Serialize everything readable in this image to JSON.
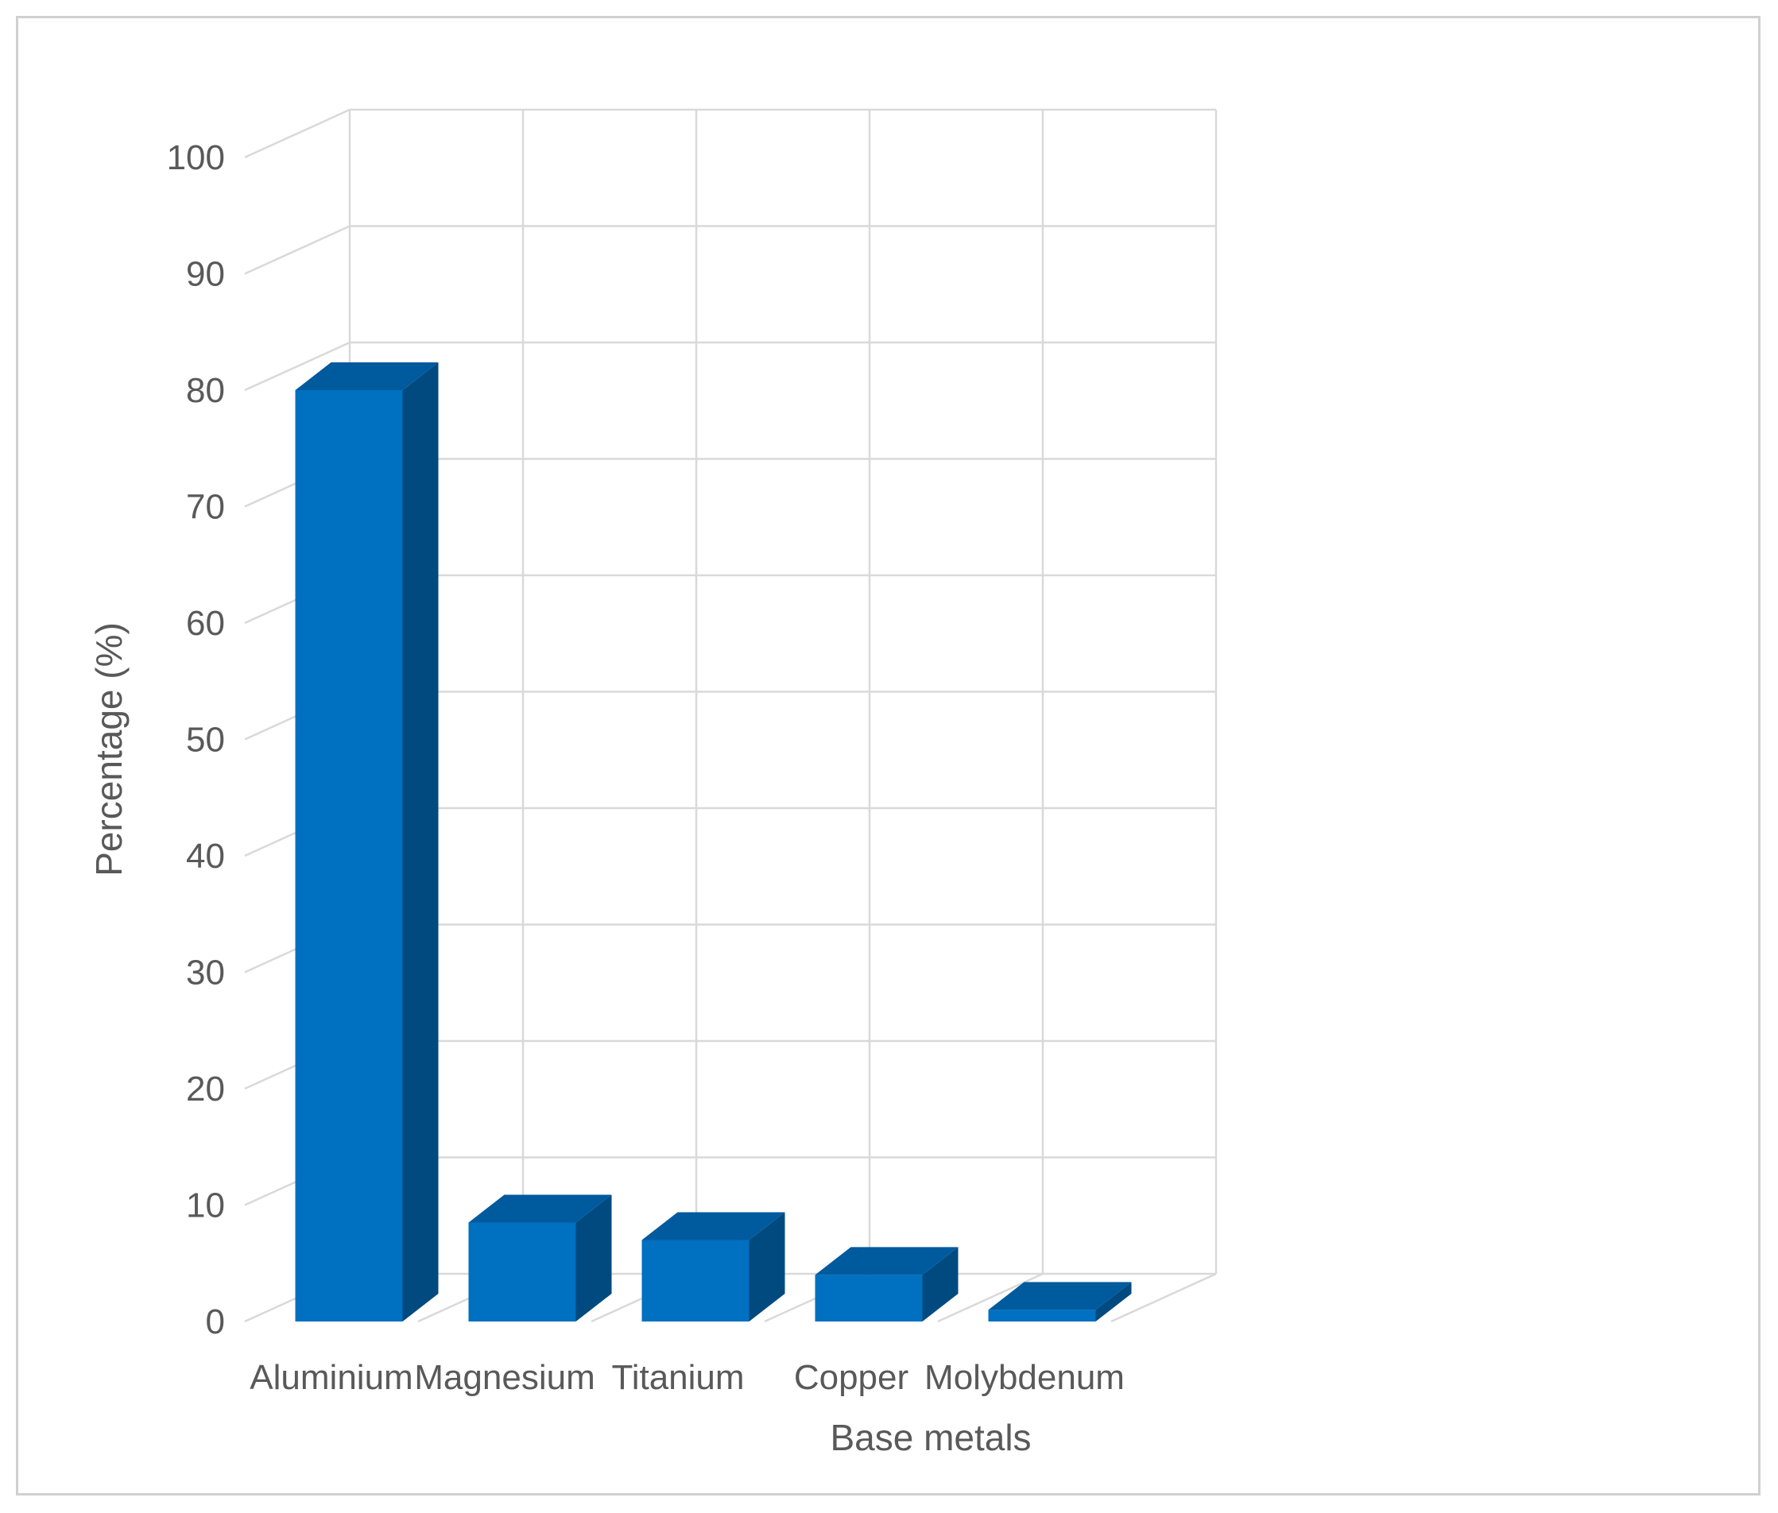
{
  "chart_data": {
    "type": "bar",
    "style": "3d-column",
    "categories": [
      "Aluminium",
      "Magnesium",
      "Titanium",
      "Copper",
      "Molybdenum"
    ],
    "values": [
      80,
      8.5,
      7,
      4,
      1
    ],
    "xlabel": "Base metals",
    "ylabel": "Percentage (%)",
    "ylim": [
      0,
      100
    ],
    "yticks": [
      0,
      10,
      20,
      30,
      40,
      50,
      60,
      70,
      80,
      90,
      100
    ],
    "grid": true,
    "legend": "none",
    "colors": {
      "bar_front": "#0070C0",
      "bar_side": "#004A80",
      "bar_top": "#005A9E",
      "grid": "#d9d9d9",
      "text": "#595959"
    }
  }
}
